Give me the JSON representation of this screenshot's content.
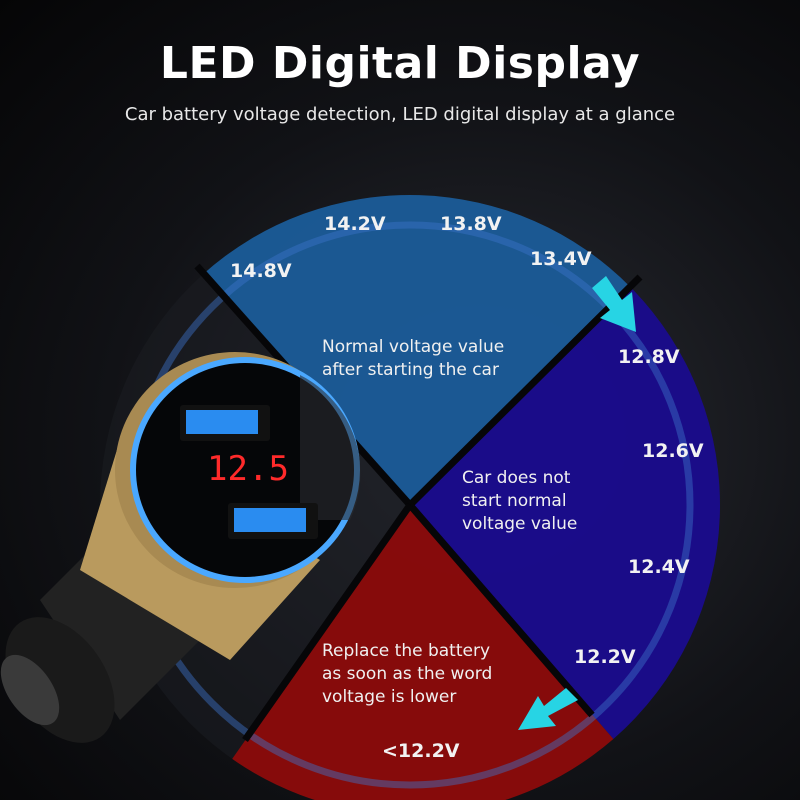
{
  "title": "LED Digital Display",
  "subtitle": "Car battery voltage detection, LED digital display at a glance",
  "display_reading": "12.5",
  "segments": {
    "normal": {
      "text": [
        "Normal voltage value",
        "after starting the car"
      ],
      "color": "#1b5d9c"
    },
    "not_start": {
      "text": [
        "Car does not",
        "start normal",
        "voltage value"
      ],
      "color": "#1a0c8e"
    },
    "replace": {
      "text": [
        "Replace the battery",
        "as soon as the word",
        "voltage is lower"
      ],
      "color": "#8c0b0b"
    }
  },
  "voltages": [
    "14.8V",
    "14.2V",
    "13.8V",
    "13.4V",
    "12.8V",
    "12.6V",
    "12.4V",
    "12.2V",
    "<12.2V"
  ],
  "arrow_color": "#27d4e4"
}
